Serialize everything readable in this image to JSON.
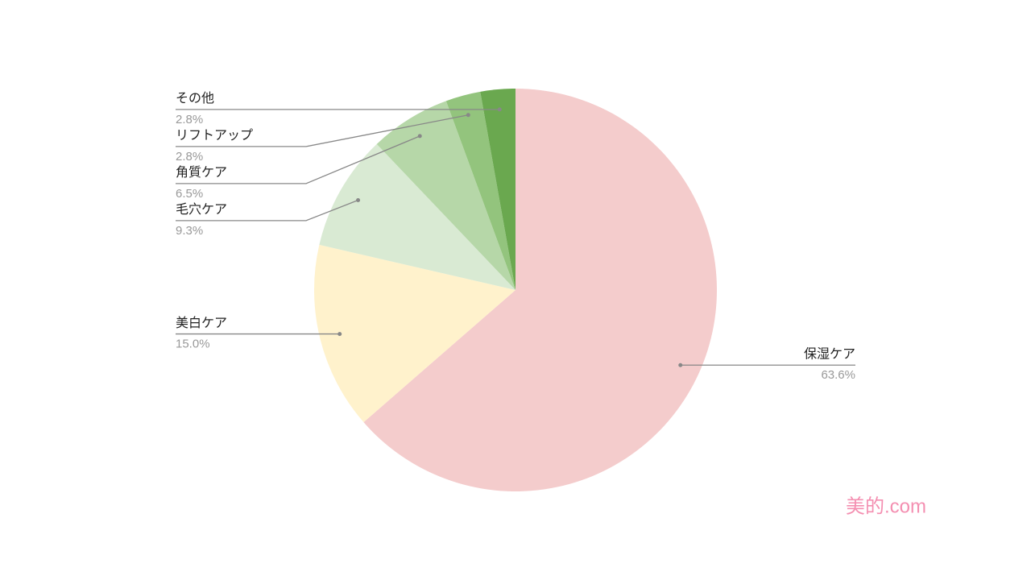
{
  "chart_data": {
    "type": "pie",
    "categories": [
      "保湿ケア",
      "美白ケア",
      "毛穴ケア",
      "角質ケア",
      "リフトアップ",
      "その他"
    ],
    "values": [
      63.6,
      15.0,
      9.3,
      6.5,
      2.8,
      2.8
    ],
    "value_labels": [
      "63.6%",
      "15.0%",
      "9.3%",
      "6.5%",
      "2.8%",
      "2.8%"
    ],
    "colors": [
      "#f4cccc",
      "#fff2cc",
      "#d9ead3",
      "#b6d7a8",
      "#93c47d",
      "#6aa84f"
    ]
  },
  "watermark": "美的.com"
}
